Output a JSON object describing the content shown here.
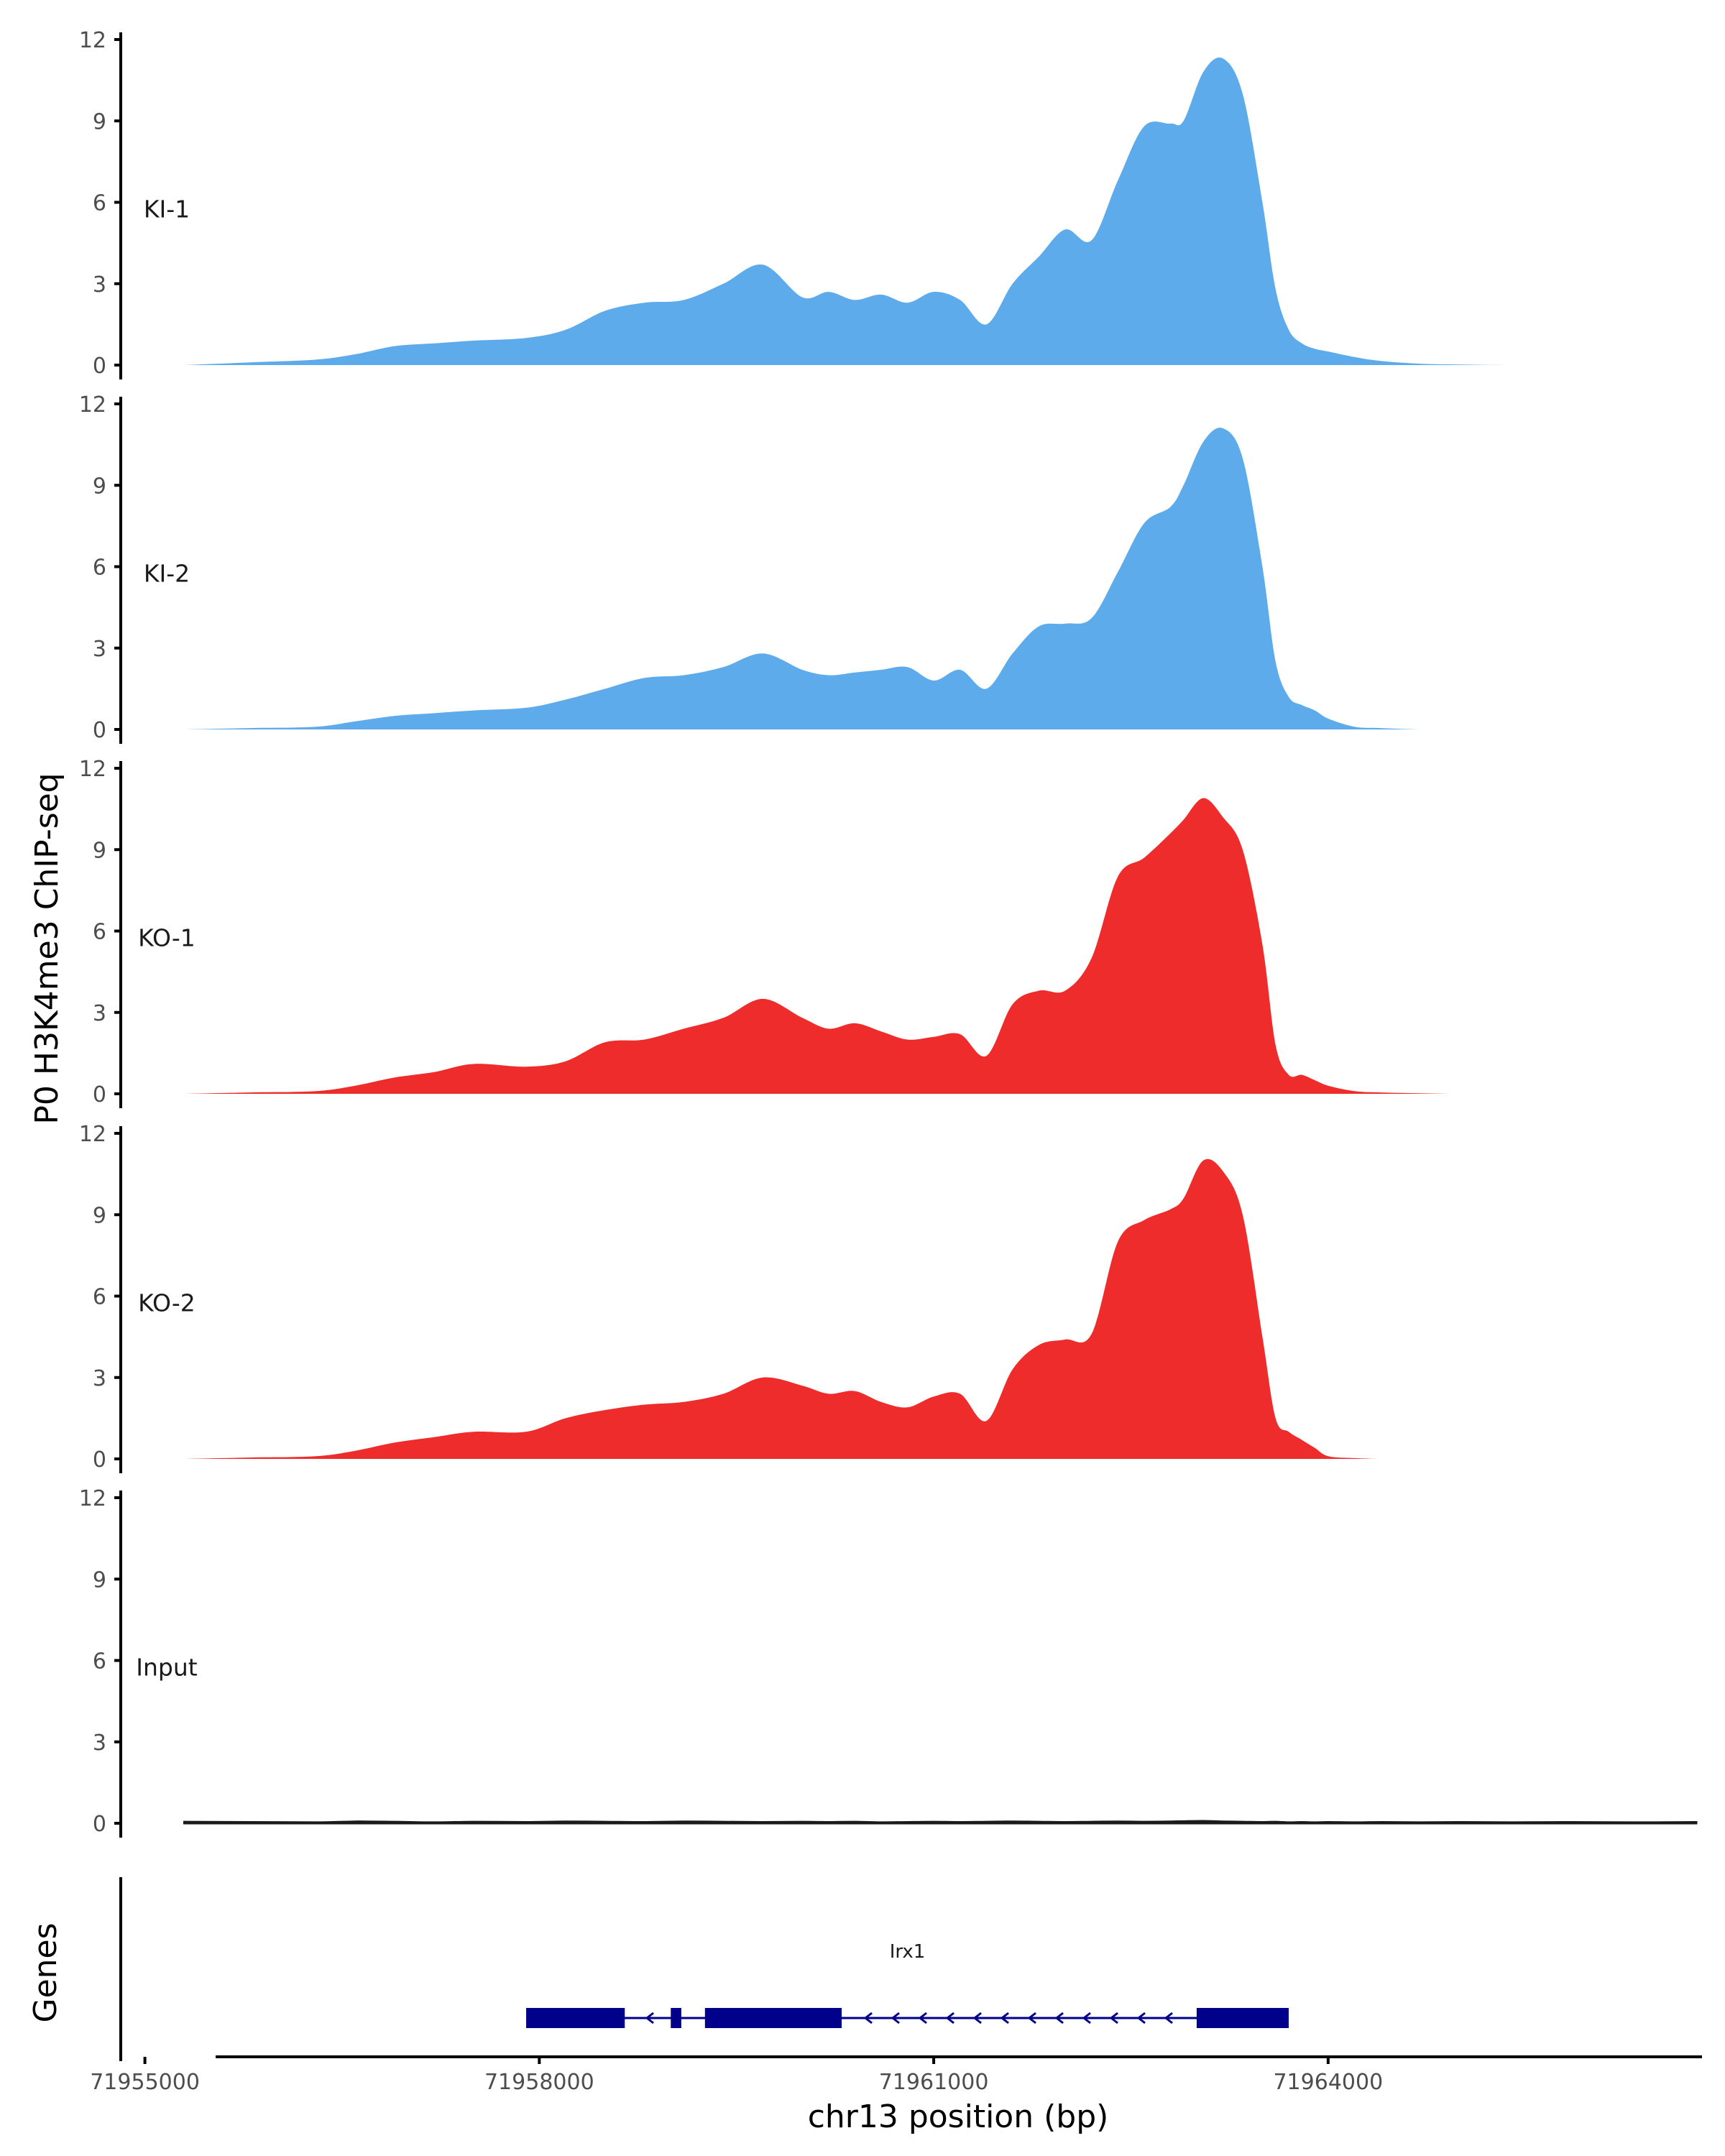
{
  "chart_data": {
    "type": "area",
    "ylabel": "P0 H3K4me3 ChIP-seq",
    "xlabel": "chr13 position (bp)",
    "xlim": [
      71954800,
      71966800
    ],
    "ylim": [
      0,
      12
    ],
    "yticks": [
      0,
      3,
      6,
      9,
      12
    ],
    "xticks": [
      71955000,
      71958000,
      71961000,
      71964000
    ],
    "xtick_labels": [
      "71955000",
      "71958000",
      "71961000",
      "71964000"
    ],
    "colors": {
      "KI": "#5dabea",
      "KO": "#ee2c2c",
      "Input": "#1a1a1a",
      "gene": "#00008b"
    },
    "tracks": [
      {
        "name": "KI-1",
        "color": "#5dabea",
        "x": [
          71955300,
          71955800,
          71956300,
          71956600,
          71956900,
          71957200,
          71957500,
          71957900,
          71958200,
          71958500,
          71958800,
          71959100,
          71959400,
          71959700,
          71960000,
          71960200,
          71960400,
          71960600,
          71960800,
          71961000,
          71961200,
          71961400,
          71961600,
          71961800,
          71962000,
          71962200,
          71962400,
          71962600,
          71962800,
          71962900,
          71963050,
          71963200,
          71963350,
          71963500,
          71963600,
          71963700,
          71963800,
          71963900,
          71964000,
          71964200,
          71964400,
          71964700,
          71965000,
          71965400,
          71965800,
          71966300
        ],
        "values": [
          0.0,
          0.1,
          0.2,
          0.4,
          0.7,
          0.8,
          0.9,
          1.0,
          1.3,
          2.0,
          2.3,
          2.4,
          3.0,
          3.7,
          2.5,
          2.7,
          2.4,
          2.6,
          2.3,
          2.7,
          2.4,
          1.5,
          3.0,
          4.0,
          5.0,
          4.6,
          6.8,
          8.8,
          8.9,
          9.0,
          10.8,
          11.3,
          10.0,
          6.0,
          2.8,
          1.3,
          0.8,
          0.6,
          0.5,
          0.3,
          0.15,
          0.05,
          0.02,
          0.0,
          0.0,
          0.0
        ]
      },
      {
        "name": "KI-2",
        "color": "#5dabea",
        "x": [
          71955300,
          71955800,
          71956300,
          71956600,
          71956900,
          71957200,
          71957500,
          71957900,
          71958200,
          71958500,
          71958800,
          71959100,
          71959400,
          71959700,
          71960000,
          71960200,
          71960400,
          71960600,
          71960800,
          71961000,
          71961200,
          71961400,
          71961600,
          71961800,
          71962000,
          71962200,
          71962400,
          71962600,
          71962800,
          71962900,
          71963050,
          71963200,
          71963350,
          71963500,
          71963600,
          71963700,
          71963800,
          71963900,
          71964000,
          71964200,
          71964400,
          71964700,
          71965000,
          71965400,
          71965800,
          71966300,
          71966800
        ],
        "values": [
          0.0,
          0.05,
          0.1,
          0.3,
          0.5,
          0.6,
          0.7,
          0.8,
          1.1,
          1.5,
          1.9,
          2.0,
          2.3,
          2.8,
          2.2,
          2.0,
          2.1,
          2.2,
          2.3,
          1.8,
          2.2,
          1.5,
          2.8,
          3.8,
          3.9,
          4.1,
          5.8,
          7.6,
          8.2,
          9.0,
          10.6,
          11.1,
          10.0,
          6.0,
          2.5,
          1.2,
          0.9,
          0.7,
          0.4,
          0.1,
          0.05,
          0.0,
          0.0,
          0.0,
          0.0,
          0.0,
          0.0
        ]
      },
      {
        "name": "KO-1",
        "color": "#ee2c2c",
        "x": [
          71955300,
          71955800,
          71956300,
          71956600,
          71956900,
          71957200,
          71957500,
          71957900,
          71958200,
          71958500,
          71958800,
          71959100,
          71959400,
          71959700,
          71960000,
          71960200,
          71960400,
          71960600,
          71960800,
          71961000,
          71961200,
          71961400,
          71961600,
          71961800,
          71962000,
          71962200,
          71962400,
          71962600,
          71962800,
          71962900,
          71963050,
          71963200,
          71963350,
          71963500,
          71963600,
          71963700,
          71963800,
          71963900,
          71964000,
          71964200,
          71964400,
          71964700,
          71965000,
          71965400,
          71965800,
          71966300
        ],
        "values": [
          0.0,
          0.05,
          0.1,
          0.3,
          0.6,
          0.8,
          1.1,
          1.0,
          1.2,
          1.9,
          2.0,
          2.4,
          2.8,
          3.5,
          2.8,
          2.4,
          2.6,
          2.3,
          2.0,
          2.1,
          2.2,
          1.4,
          3.3,
          3.8,
          3.8,
          5.0,
          8.0,
          8.7,
          9.6,
          10.1,
          10.9,
          10.2,
          9.0,
          5.5,
          1.8,
          0.7,
          0.7,
          0.5,
          0.3,
          0.1,
          0.05,
          0.02,
          0.0,
          0.0,
          0.0,
          0.0
        ]
      },
      {
        "name": "KO-2",
        "color": "#ee2c2c",
        "x": [
          71955300,
          71955800,
          71956300,
          71956600,
          71956900,
          71957200,
          71957500,
          71957900,
          71958200,
          71958500,
          71958800,
          71959100,
          71959400,
          71959700,
          71960000,
          71960200,
          71960400,
          71960600,
          71960800,
          71961000,
          71961200,
          71961400,
          71961600,
          71961800,
          71962000,
          71962200,
          71962400,
          71962600,
          71962800,
          71962900,
          71963050,
          71963200,
          71963350,
          71963500,
          71963600,
          71963700,
          71963800,
          71963900,
          71964000,
          71964200,
          71964400,
          71964700,
          71965000,
          71965400,
          71965800,
          71966300,
          71966800
        ],
        "values": [
          0.0,
          0.05,
          0.1,
          0.3,
          0.6,
          0.8,
          1.0,
          1.0,
          1.5,
          1.8,
          2.0,
          2.1,
          2.4,
          3.0,
          2.7,
          2.4,
          2.5,
          2.1,
          1.9,
          2.3,
          2.4,
          1.4,
          3.3,
          4.2,
          4.4,
          4.6,
          8.0,
          8.8,
          9.2,
          9.6,
          11.0,
          10.6,
          9.0,
          4.5,
          1.5,
          1.0,
          0.7,
          0.4,
          0.1,
          0.03,
          0.0,
          0.0,
          0.0,
          0.0,
          0.0,
          0.0,
          0.0
        ]
      },
      {
        "name": "Input",
        "color": "#1a1a1a",
        "x": [
          71955300,
          71955800,
          71956300,
          71956600,
          71956900,
          71957200,
          71957500,
          71957900,
          71958200,
          71958500,
          71958800,
          71959100,
          71959400,
          71959700,
          71960000,
          71960200,
          71960400,
          71960600,
          71960800,
          71961000,
          71961200,
          71961400,
          71961600,
          71961800,
          71962000,
          71962200,
          71962400,
          71962600,
          71962800,
          71962900,
          71963050,
          71963200,
          71963350,
          71963500,
          71963600,
          71963700,
          71963800,
          71963900,
          71964000,
          71964200,
          71964400,
          71964700,
          71965000,
          71965400,
          71965800,
          71966300,
          71966800
        ],
        "values": [
          0.05,
          0.04,
          0.03,
          0.06,
          0.05,
          0.03,
          0.05,
          0.04,
          0.06,
          0.05,
          0.04,
          0.06,
          0.05,
          0.04,
          0.05,
          0.04,
          0.05,
          0.03,
          0.04,
          0.05,
          0.04,
          0.05,
          0.06,
          0.05,
          0.04,
          0.05,
          0.06,
          0.05,
          0.06,
          0.07,
          0.08,
          0.06,
          0.05,
          0.04,
          0.05,
          0.03,
          0.04,
          0.03,
          0.04,
          0.03,
          0.04,
          0.03,
          0.04,
          0.03,
          0.04,
          0.03,
          0.04
        ]
      }
    ],
    "genes": {
      "title": "Genes",
      "name": "Irx1",
      "strand": "-",
      "start": 71957900,
      "end": 71963700,
      "exons": [
        [
          71957900,
          71958650
        ],
        [
          71959000,
          71959080
        ],
        [
          71959260,
          71960300
        ],
        [
          71963000,
          71963700
        ]
      ]
    }
  }
}
